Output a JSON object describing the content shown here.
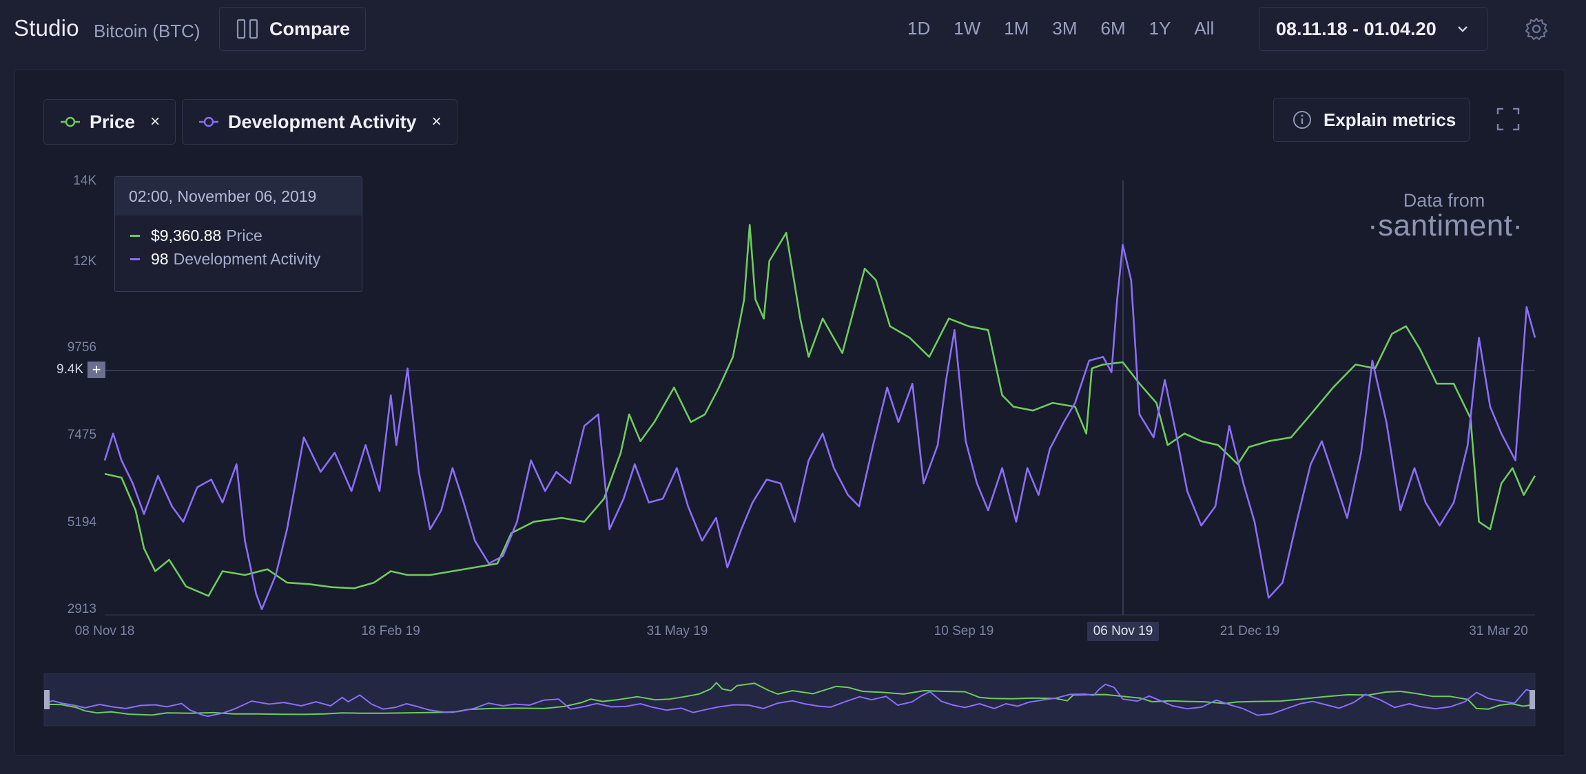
{
  "header": {
    "brand": "Studio",
    "asset": "Bitcoin (BTC)",
    "compare_label": "Compare",
    "ranges": [
      "1D",
      "1W",
      "1M",
      "3M",
      "6M",
      "1Y",
      "All"
    ],
    "date_range": "08.11.18 - 01.04.20"
  },
  "metrics": [
    {
      "name": "Price",
      "color": "#6fcb5d",
      "remove": "×"
    },
    {
      "name": "Development Activity",
      "color": "#8b6dfa",
      "remove": "×"
    }
  ],
  "explain_label": "Explain metrics",
  "tooltip": {
    "date": "02:00, November 06, 2019",
    "rows": [
      {
        "value": "$9,360.88",
        "label": "Price",
        "color": "#6fcb5d"
      },
      {
        "value": "98",
        "label": "Development Activity",
        "color": "#8b6dfa"
      }
    ]
  },
  "watermark": {
    "from": "Data from",
    "brand": "·santiment·"
  },
  "crosshair": {
    "y_value": "9.4K",
    "x_label": "06 Nov 19"
  },
  "chart_data": {
    "type": "line",
    "y_ticks": [
      "14K",
      "12K",
      "9756",
      "7475",
      "5194",
      "2913"
    ],
    "y_tick_values": [
      14000,
      12000,
      9756,
      7475,
      5194,
      2913
    ],
    "ylim": [
      2913,
      14000
    ],
    "x_labels": [
      "08 Nov 18",
      "18 Feb 19",
      "31 May 19",
      "10 Sep 19",
      "06 Nov 19",
      "21 Dec 19",
      "31 Mar 20"
    ],
    "x_start": "2018-11-08",
    "x_end": "2020-04-01",
    "series": [
      {
        "name": "Price",
        "color": "#6fcb5d",
        "points": [
          [
            "2018-11-08",
            6450
          ],
          [
            "2018-11-14",
            6350
          ],
          [
            "2018-11-19",
            5500
          ],
          [
            "2018-11-22",
            4500
          ],
          [
            "2018-11-26",
            3900
          ],
          [
            "2018-12-01",
            4200
          ],
          [
            "2018-12-07",
            3500
          ],
          [
            "2018-12-15",
            3250
          ],
          [
            "2018-12-20",
            3900
          ],
          [
            "2018-12-28",
            3800
          ],
          [
            "2019-01-05",
            3950
          ],
          [
            "2019-01-12",
            3600
          ],
          [
            "2019-01-20",
            3560
          ],
          [
            "2019-01-28",
            3480
          ],
          [
            "2019-02-05",
            3450
          ],
          [
            "2019-02-12",
            3600
          ],
          [
            "2019-02-18",
            3900
          ],
          [
            "2019-02-24",
            3800
          ],
          [
            "2019-03-04",
            3800
          ],
          [
            "2019-03-12",
            3900
          ],
          [
            "2019-03-20",
            4000
          ],
          [
            "2019-03-28",
            4100
          ],
          [
            "2019-04-02",
            4900
          ],
          [
            "2019-04-10",
            5200
          ],
          [
            "2019-04-20",
            5300
          ],
          [
            "2019-04-28",
            5200
          ],
          [
            "2019-05-05",
            5800
          ],
          [
            "2019-05-11",
            7000
          ],
          [
            "2019-05-14",
            8000
          ],
          [
            "2019-05-18",
            7300
          ],
          [
            "2019-05-23",
            7800
          ],
          [
            "2019-05-30",
            8700
          ],
          [
            "2019-06-05",
            7800
          ],
          [
            "2019-06-10",
            8000
          ],
          [
            "2019-06-15",
            8700
          ],
          [
            "2019-06-20",
            9500
          ],
          [
            "2019-06-24",
            11000
          ],
          [
            "2019-06-26",
            12900
          ],
          [
            "2019-06-28",
            11000
          ],
          [
            "2019-07-01",
            10500
          ],
          [
            "2019-07-03",
            12000
          ],
          [
            "2019-07-09",
            12700
          ],
          [
            "2019-07-14",
            10500
          ],
          [
            "2019-07-17",
            9500
          ],
          [
            "2019-07-22",
            10500
          ],
          [
            "2019-07-29",
            9600
          ],
          [
            "2019-08-06",
            11800
          ],
          [
            "2019-08-10",
            11500
          ],
          [
            "2019-08-15",
            10300
          ],
          [
            "2019-08-22",
            10000
          ],
          [
            "2019-08-29",
            9500
          ],
          [
            "2019-09-05",
            10500
          ],
          [
            "2019-09-12",
            10300
          ],
          [
            "2019-09-19",
            10200
          ],
          [
            "2019-09-24",
            8500
          ],
          [
            "2019-09-28",
            8200
          ],
          [
            "2019-10-05",
            8100
          ],
          [
            "2019-10-12",
            8300
          ],
          [
            "2019-10-20",
            8200
          ],
          [
            "2019-10-24",
            7500
          ],
          [
            "2019-10-26",
            9200
          ],
          [
            "2019-10-30",
            9300
          ],
          [
            "2019-11-06",
            9360
          ],
          [
            "2019-11-12",
            8800
          ],
          [
            "2019-11-18",
            8300
          ],
          [
            "2019-11-22",
            7200
          ],
          [
            "2019-11-28",
            7500
          ],
          [
            "2019-12-04",
            7300
          ],
          [
            "2019-12-10",
            7200
          ],
          [
            "2019-12-17",
            6700
          ],
          [
            "2019-12-21",
            7150
          ],
          [
            "2019-12-28",
            7300
          ],
          [
            "2020-01-05",
            7400
          ],
          [
            "2020-01-12",
            8000
          ],
          [
            "2020-01-20",
            8700
          ],
          [
            "2020-01-28",
            9300
          ],
          [
            "2020-02-04",
            9200
          ],
          [
            "2020-02-10",
            10100
          ],
          [
            "2020-02-15",
            10300
          ],
          [
            "2020-02-20",
            9700
          ],
          [
            "2020-02-26",
            8800
          ],
          [
            "2020-03-03",
            8800
          ],
          [
            "2020-03-09",
            7900
          ],
          [
            "2020-03-12",
            5200
          ],
          [
            "2020-03-16",
            5000
          ],
          [
            "2020-03-20",
            6200
          ],
          [
            "2020-03-24",
            6600
          ],
          [
            "2020-03-28",
            5900
          ],
          [
            "2020-04-01",
            6400
          ]
        ]
      },
      {
        "name": "Development Activity",
        "color": "#8b6dfa",
        "points": [
          [
            "2018-11-08",
            6800
          ],
          [
            "2018-11-11",
            7500
          ],
          [
            "2018-11-14",
            6800
          ],
          [
            "2018-11-18",
            6200
          ],
          [
            "2018-11-22",
            5400
          ],
          [
            "2018-11-27",
            6400
          ],
          [
            "2018-12-02",
            5600
          ],
          [
            "2018-12-06",
            5200
          ],
          [
            "2018-12-11",
            6100
          ],
          [
            "2018-12-16",
            6300
          ],
          [
            "2018-12-20",
            5700
          ],
          [
            "2018-12-25",
            6700
          ],
          [
            "2018-12-28",
            4700
          ],
          [
            "2019-01-01",
            3300
          ],
          [
            "2019-01-03",
            2900
          ],
          [
            "2019-01-08",
            3800
          ],
          [
            "2019-01-12",
            5000
          ],
          [
            "2019-01-18",
            7400
          ],
          [
            "2019-01-24",
            6500
          ],
          [
            "2019-01-29",
            7000
          ],
          [
            "2019-02-04",
            6000
          ],
          [
            "2019-02-09",
            7200
          ],
          [
            "2019-02-14",
            6000
          ],
          [
            "2019-02-18",
            8500
          ],
          [
            "2019-02-20",
            7200
          ],
          [
            "2019-02-24",
            9200
          ],
          [
            "2019-02-28",
            6500
          ],
          [
            "2019-03-04",
            5000
          ],
          [
            "2019-03-08",
            5500
          ],
          [
            "2019-03-12",
            6600
          ],
          [
            "2019-03-16",
            5700
          ],
          [
            "2019-03-20",
            4700
          ],
          [
            "2019-03-25",
            4100
          ],
          [
            "2019-03-30",
            4300
          ],
          [
            "2019-04-04",
            5200
          ],
          [
            "2019-04-09",
            6800
          ],
          [
            "2019-04-14",
            6000
          ],
          [
            "2019-04-18",
            6500
          ],
          [
            "2019-04-23",
            6200
          ],
          [
            "2019-04-28",
            7700
          ],
          [
            "2019-05-03",
            8000
          ],
          [
            "2019-05-07",
            5000
          ],
          [
            "2019-05-12",
            5800
          ],
          [
            "2019-05-16",
            6700
          ],
          [
            "2019-05-21",
            5700
          ],
          [
            "2019-05-26",
            5800
          ],
          [
            "2019-05-31",
            6600
          ],
          [
            "2019-06-04",
            5600
          ],
          [
            "2019-06-09",
            4700
          ],
          [
            "2019-06-14",
            5300
          ],
          [
            "2019-06-18",
            4000
          ],
          [
            "2019-06-23",
            5000
          ],
          [
            "2019-06-27",
            5700
          ],
          [
            "2019-07-02",
            6300
          ],
          [
            "2019-07-07",
            6200
          ],
          [
            "2019-07-12",
            5200
          ],
          [
            "2019-07-17",
            6800
          ],
          [
            "2019-07-22",
            7500
          ],
          [
            "2019-07-26",
            6600
          ],
          [
            "2019-07-31",
            5900
          ],
          [
            "2019-08-04",
            5600
          ],
          [
            "2019-08-09",
            7200
          ],
          [
            "2019-08-14",
            8700
          ],
          [
            "2019-08-18",
            7800
          ],
          [
            "2019-08-23",
            8800
          ],
          [
            "2019-08-27",
            6200
          ],
          [
            "2019-09-01",
            7200
          ],
          [
            "2019-09-04",
            8900
          ],
          [
            "2019-09-07",
            10200
          ],
          [
            "2019-09-11",
            7300
          ],
          [
            "2019-09-15",
            6200
          ],
          [
            "2019-09-19",
            5500
          ],
          [
            "2019-09-24",
            6600
          ],
          [
            "2019-09-29",
            5200
          ],
          [
            "2019-10-03",
            6600
          ],
          [
            "2019-10-07",
            5900
          ],
          [
            "2019-10-11",
            7100
          ],
          [
            "2019-10-16",
            7800
          ],
          [
            "2019-10-20",
            8300
          ],
          [
            "2019-10-25",
            9400
          ],
          [
            "2019-10-30",
            9500
          ],
          [
            "2019-11-02",
            9100
          ],
          [
            "2019-11-04",
            11000
          ],
          [
            "2019-11-06",
            12400
          ],
          [
            "2019-11-09",
            11500
          ],
          [
            "2019-11-12",
            8000
          ],
          [
            "2019-11-17",
            7400
          ],
          [
            "2019-11-21",
            8900
          ],
          [
            "2019-11-25",
            7500
          ],
          [
            "2019-11-29",
            6000
          ],
          [
            "2019-12-04",
            5100
          ],
          [
            "2019-12-09",
            5600
          ],
          [
            "2019-12-14",
            7700
          ],
          [
            "2019-12-19",
            6200
          ],
          [
            "2019-12-23",
            5200
          ],
          [
            "2019-12-28",
            3200
          ],
          [
            "2020-01-02",
            3600
          ],
          [
            "2020-01-07",
            5200
          ],
          [
            "2020-01-12",
            6700
          ],
          [
            "2020-01-16",
            7300
          ],
          [
            "2020-01-21",
            6200
          ],
          [
            "2020-01-25",
            5300
          ],
          [
            "2020-01-30",
            7000
          ],
          [
            "2020-02-03",
            9400
          ],
          [
            "2020-02-08",
            7800
          ],
          [
            "2020-02-13",
            5500
          ],
          [
            "2020-02-18",
            6600
          ],
          [
            "2020-02-22",
            5700
          ],
          [
            "2020-02-27",
            5100
          ],
          [
            "2020-03-03",
            5700
          ],
          [
            "2020-03-08",
            7200
          ],
          [
            "2020-03-12",
            10000
          ],
          [
            "2020-03-16",
            8200
          ],
          [
            "2020-03-20",
            7500
          ],
          [
            "2020-03-25",
            6800
          ],
          [
            "2020-03-29",
            10800
          ],
          [
            "2020-04-01",
            10000
          ]
        ]
      }
    ]
  }
}
